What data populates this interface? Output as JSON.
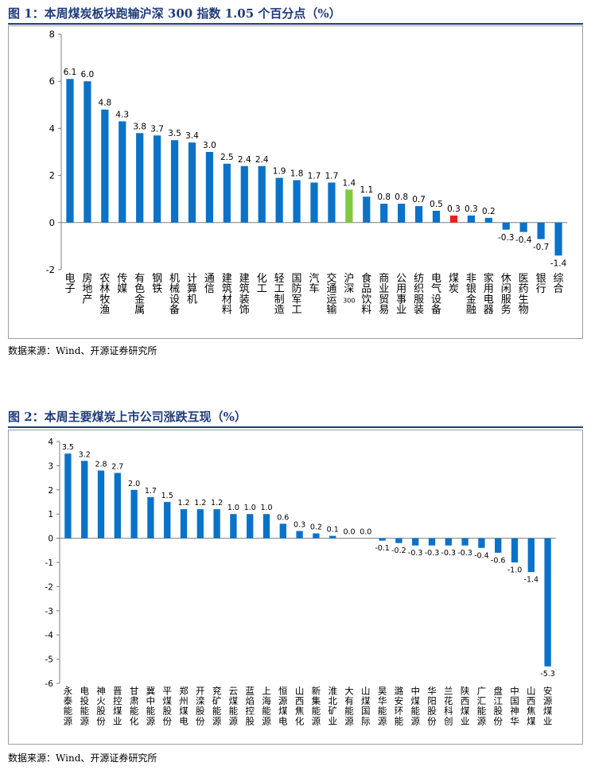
{
  "figure1": {
    "title": "图 1：本周煤炭板块跑输沪深 300 指数 1.05 个百分点（%）",
    "source": "数据来源：Wind、开源证券研究所",
    "chart_data": {
      "type": "bar",
      "categories": [
        "电子",
        "房地产",
        "农林牧渔",
        "传媒",
        "有色金属",
        "钢铁",
        "机械设备",
        "计算机",
        "通信",
        "建筑材料",
        "建筑装饰",
        "化工",
        "轻工制造",
        "国防军工",
        "汽车",
        "交通运输",
        "沪深300",
        "食品饮料",
        "商业贸易",
        "公用事业",
        "纺织服装",
        "电气设备",
        "煤炭",
        "非银金融",
        "家用电器",
        "休闲服务",
        "医药生物",
        "银行",
        "综合"
      ],
      "values": [
        6.1,
        6.0,
        4.8,
        4.3,
        3.8,
        3.7,
        3.5,
        3.4,
        3.0,
        2.5,
        2.4,
        2.4,
        1.9,
        1.8,
        1.7,
        1.7,
        1.4,
        1.1,
        0.8,
        0.8,
        0.7,
        0.5,
        0.3,
        0.3,
        0.2,
        -0.3,
        -0.4,
        -0.7,
        -1.4
      ],
      "value_labels": [
        "6.1",
        "6.0",
        "4.8",
        "4.3",
        "3.8",
        "3.7",
        "3.5",
        "3.4",
        "3.0",
        "2.5",
        "2.4",
        "2.4",
        "1.9",
        "1.8",
        "1.7",
        "1.7",
        "1.4",
        "1.1",
        "0.8",
        "0.8",
        "0.7",
        "0.5",
        "0.3",
        "0.3",
        "0.2",
        "-0.3",
        "-0.4",
        "-0.7",
        "-1.4"
      ],
      "yticks": [
        "-2",
        "0",
        "2",
        "4",
        "6",
        "8"
      ],
      "ylim": [
        -2,
        8
      ],
      "grid": false,
      "colors": {
        "default": "#0a72c8",
        "highlight_index": "#7ecb3f",
        "coal": "#e8211d"
      },
      "highlight": {
        "沪深300": "#7ecb3f",
        "煤炭": "#e8211d"
      }
    }
  },
  "figure2": {
    "title": "图 2：本周主要煤炭上市公司涨跌互现（%）",
    "source": "数据来源：Wind、开源证券研究所",
    "chart_data": {
      "type": "bar",
      "categories": [
        "永泰能源",
        "电投能源",
        "神火股份",
        "晋控煤业",
        "甘肃能化",
        "冀中能源",
        "平煤股份",
        "郑州煤电",
        "开滦股份",
        "兖矿能源",
        "云煤能源",
        "蓝焰控股",
        "上海能源",
        "恒源煤电",
        "山西焦化",
        "新集能源",
        "淮北矿业",
        "大有能源",
        "山煤国际",
        "昊华能源",
        "潞安环能",
        "中煤能源",
        "华阳股份",
        "兰花科创",
        "陕西煤业",
        "广汇能源",
        "盘江股份",
        "中国神华",
        "山西焦煤",
        "安源煤业"
      ],
      "values": [
        3.5,
        3.2,
        2.8,
        2.7,
        2.0,
        1.7,
        1.5,
        1.2,
        1.2,
        1.2,
        1.0,
        1.0,
        1.0,
        0.6,
        0.3,
        0.2,
        0.1,
        0.0,
        0.0,
        -0.1,
        -0.2,
        -0.3,
        -0.3,
        -0.3,
        -0.3,
        -0.4,
        -0.6,
        -1.0,
        -1.4,
        -5.3
      ],
      "value_labels": [
        "3.5",
        "3.2",
        "2.8",
        "2.7",
        "2.0",
        "1.7",
        "1.5",
        "1.2",
        "1.2",
        "1.2",
        "1.0",
        "1.0",
        "1.0",
        "0.6",
        "0.3",
        "0.2",
        "0.1",
        "0.0",
        "0.0",
        "-0.1",
        "-0.2",
        "-0.3",
        "-0.3",
        "-0.3",
        "-0.3",
        "-0.4",
        "-0.6",
        "-1.0",
        "-1.4",
        "-5.3"
      ],
      "yticks": [
        "-6",
        "-5",
        "-4",
        "-3",
        "-2",
        "-1",
        "0",
        "1",
        "2",
        "3",
        "4"
      ],
      "ylim": [
        -6,
        4
      ],
      "grid": false,
      "colors": {
        "default": "#0a72c8"
      }
    }
  }
}
